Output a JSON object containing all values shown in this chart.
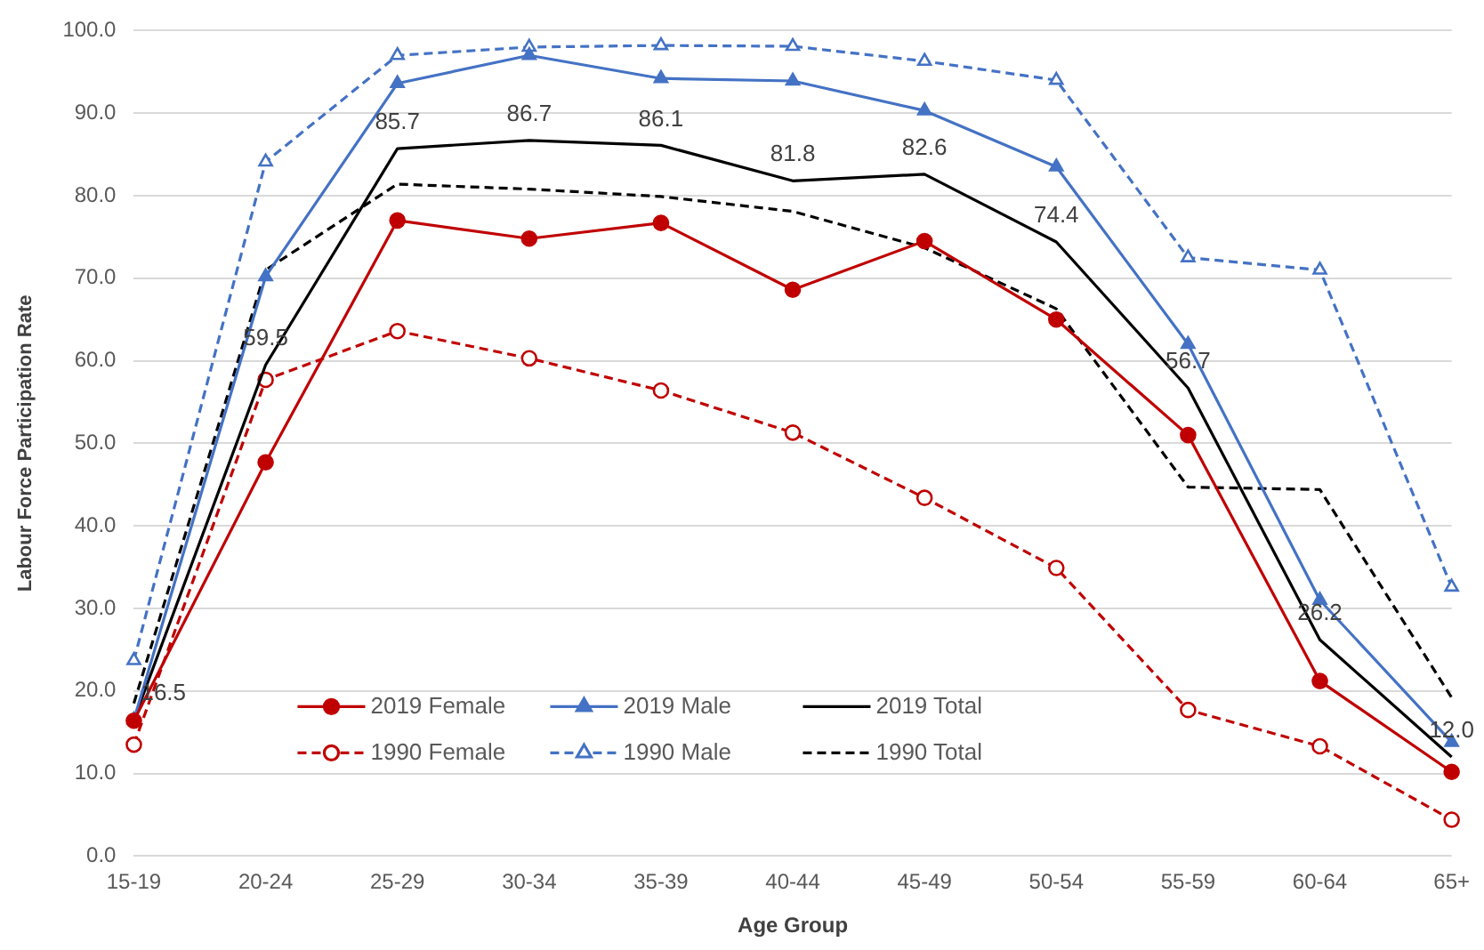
{
  "chart_data": {
    "type": "line",
    "xlabel": "Age Group",
    "ylabel": "Labour Force Participation Rate",
    "categories": [
      "15-19",
      "20-24",
      "25-29",
      "30-34",
      "35-39",
      "40-44",
      "45-49",
      "50-54",
      "55-59",
      "60-64",
      "65+"
    ],
    "ylim": [
      0,
      100
    ],
    "yticks": [
      {
        "value": 0,
        "label": "0.0"
      },
      {
        "value": 10,
        "label": "10.0"
      },
      {
        "value": 20,
        "label": "20.0"
      },
      {
        "value": 30,
        "label": "30.0"
      },
      {
        "value": 40,
        "label": "40.0"
      },
      {
        "value": 50,
        "label": "50.0"
      },
      {
        "value": 60,
        "label": "60.0"
      },
      {
        "value": 70,
        "label": "70.0"
      },
      {
        "value": 80,
        "label": "80.0"
      },
      {
        "value": 90,
        "label": "90.0"
      },
      {
        "value": 100,
        "label": "100.0"
      }
    ],
    "grid": "y",
    "legend": "bottom",
    "series": [
      {
        "name": "2019 Female",
        "color": "#c00000",
        "marker": "circle",
        "line_style": "solid",
        "values": [
          16.4,
          47.7,
          77.0,
          74.8,
          76.7,
          68.6,
          74.5,
          65.0,
          51.0,
          21.2,
          10.2
        ]
      },
      {
        "name": "2019 Male",
        "color": "#4472c4",
        "marker": "triangle",
        "line_style": "solid",
        "values": [
          16.5,
          70.2,
          93.6,
          97.0,
          94.2,
          93.9,
          90.3,
          83.5,
          62.0,
          31.0,
          13.8
        ]
      },
      {
        "name": "2019 Total",
        "color": "#000000",
        "marker": "none",
        "line_style": "solid",
        "values": [
          16.5,
          59.5,
          85.7,
          86.7,
          86.1,
          81.8,
          82.6,
          74.4,
          56.7,
          26.2,
          12.0
        ],
        "value_labels": [
          "16.5",
          "59.5",
          "85.7",
          "86.7",
          "86.1",
          "81.8",
          "82.6",
          "74.4",
          "56.7",
          "26.2",
          "12.0"
        ]
      },
      {
        "name": "1990 Female",
        "color": "#c00000",
        "marker": "circle",
        "line_style": "dashed",
        "values": [
          13.5,
          57.7,
          63.6,
          60.3,
          56.4,
          51.3,
          43.4,
          34.9,
          17.7,
          13.3,
          4.4
        ]
      },
      {
        "name": "1990 Male",
        "color": "#4472c4",
        "marker": "triangle",
        "line_style": "dashed",
        "values": [
          23.7,
          84.1,
          97.0,
          98.0,
          98.2,
          98.1,
          96.3,
          94.0,
          72.5,
          71.0,
          32.6
        ]
      },
      {
        "name": "1990 Total",
        "color": "#000000",
        "marker": "none",
        "line_style": "dashed",
        "values": [
          18.5,
          71.0,
          81.4,
          80.8,
          79.9,
          78.1,
          73.7,
          66.3,
          44.7,
          44.4,
          19.2
        ]
      }
    ]
  }
}
